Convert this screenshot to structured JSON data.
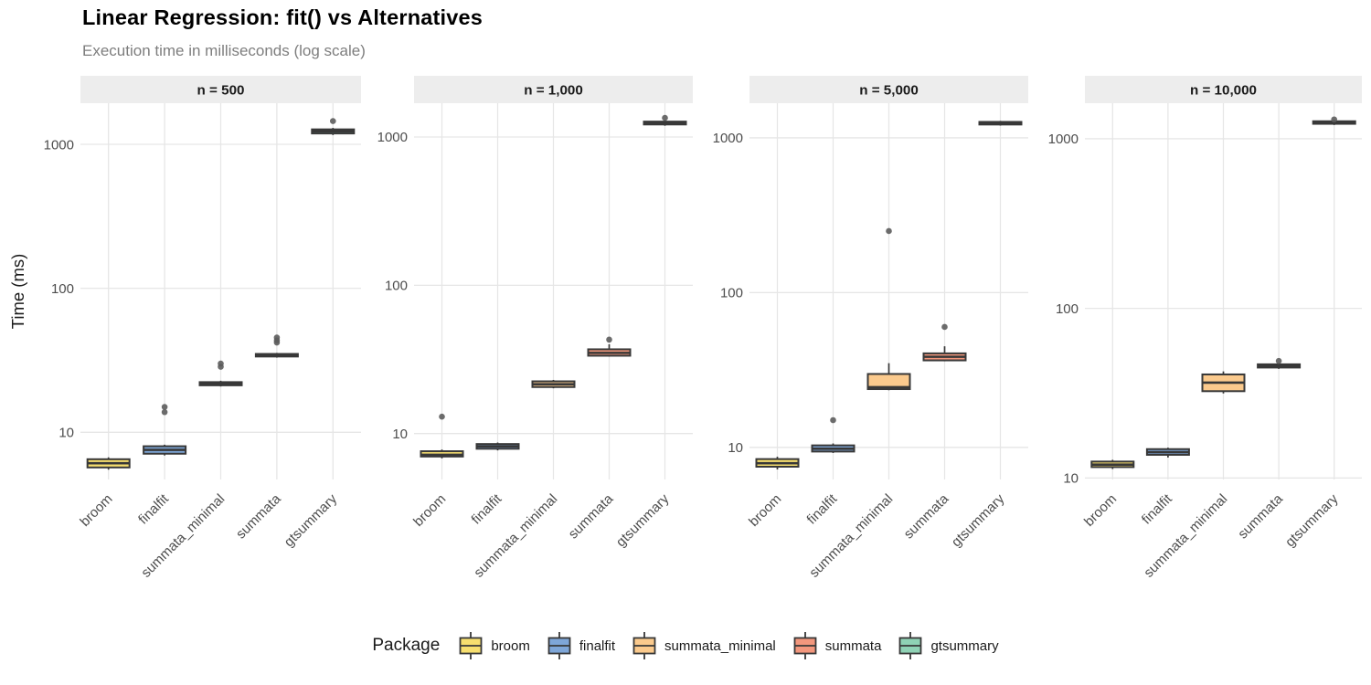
{
  "chart_data": {
    "type": "boxplot",
    "title": "Linear Regression: fit() vs Alternatives",
    "subtitle": "Execution time in milliseconds (log scale)",
    "ylabel": "Time (ms)",
    "legend_title": "Package",
    "legend_position": "bottom",
    "scale": "log10",
    "grid": true,
    "y_ticks": [
      10,
      100,
      1000
    ],
    "categories": [
      "broom",
      "finalfit",
      "summata_minimal",
      "summata",
      "gtsummary"
    ],
    "colors": {
      "broom": "#F7DF6F",
      "finalfit": "#7EA6D8",
      "summata_minimal": "#FBCA8D",
      "summata": "#F3977D",
      "gtsummary": "#8FD2B5"
    },
    "style": {
      "box_stroke": "#383838",
      "outlier_color": "#5c5c5c",
      "grid_color": "#e6e6e6",
      "strip_bg": "#ededed",
      "strip_text": "#1a1a1a",
      "axis_text": "#4d4d4d"
    },
    "facets": [
      {
        "label": "n = 500",
        "ylim": [
          4.7,
          1930
        ],
        "boxes": [
          {
            "package": "broom",
            "whisker_low": 5.5,
            "q1": 5.7,
            "median": 6.1,
            "q3": 6.5,
            "whisker_high": 6.7,
            "outliers": []
          },
          {
            "package": "finalfit",
            "whisker_low": 6.9,
            "q1": 7.1,
            "median": 7.55,
            "q3": 8.0,
            "whisker_high": 8.2,
            "outliers": [
              13.8,
              15
            ]
          },
          {
            "package": "summata_minimal",
            "whisker_low": 20.8,
            "q1": 21.2,
            "median": 21.7,
            "q3": 22.3,
            "whisker_high": 22.8,
            "outliers": [
              28.5,
              30
            ]
          },
          {
            "package": "summata",
            "whisker_low": 33,
            "q1": 33.6,
            "median": 34.2,
            "q3": 35,
            "whisker_high": 35.6,
            "outliers": [
              42,
              43.5,
              45.5
            ]
          },
          {
            "package": "gtsummary",
            "whisker_low": 1160,
            "q1": 1190,
            "median": 1230,
            "q3": 1270,
            "whisker_high": 1300,
            "outliers": [
              1450
            ]
          }
        ]
      },
      {
        "label": "n = 1,000",
        "ylim": [
          4.9,
          1690
        ],
        "boxes": [
          {
            "package": "broom",
            "whisker_low": 6.8,
            "q1": 7.0,
            "median": 7.2,
            "q3": 7.6,
            "whisker_high": 7.8,
            "outliers": [
              13
            ]
          },
          {
            "package": "finalfit",
            "whisker_low": 7.7,
            "q1": 7.9,
            "median": 8.2,
            "q3": 8.5,
            "whisker_high": 8.7,
            "outliers": []
          },
          {
            "package": "summata_minimal",
            "whisker_low": 20.2,
            "q1": 20.6,
            "median": 21.5,
            "q3": 22.5,
            "whisker_high": 23.0,
            "outliers": []
          },
          {
            "package": "summata",
            "whisker_low": 33,
            "q1": 33.5,
            "median": 35,
            "q3": 37,
            "whisker_high": 40,
            "outliers": [
              43
            ]
          },
          {
            "package": "gtsummary",
            "whisker_low": 1190,
            "q1": 1215,
            "median": 1240,
            "q3": 1270,
            "whisker_high": 1295,
            "outliers": [
              1345
            ]
          }
        ]
      },
      {
        "label": "n = 5,000",
        "ylim": [
          6.2,
          1675
        ],
        "boxes": [
          {
            "package": "broom",
            "whisker_low": 7.2,
            "q1": 7.5,
            "median": 7.9,
            "q3": 8.4,
            "whisker_high": 8.7,
            "outliers": []
          },
          {
            "package": "finalfit",
            "whisker_low": 9.2,
            "q1": 9.4,
            "median": 9.8,
            "q3": 10.3,
            "whisker_high": 10.6,
            "outliers": [
              15
            ]
          },
          {
            "package": "summata_minimal",
            "whisker_low": 23.4,
            "q1": 23.8,
            "median": 24.5,
            "q3": 29.8,
            "whisker_high": 35,
            "outliers": [
              250
            ]
          },
          {
            "package": "summata",
            "whisker_low": 36,
            "q1": 36.5,
            "median": 38.5,
            "q3": 40.5,
            "whisker_high": 45,
            "outliers": [
              60
            ]
          },
          {
            "package": "gtsummary",
            "whisker_low": 1200,
            "q1": 1220,
            "median": 1245,
            "q3": 1268,
            "whisker_high": 1288,
            "outliers": []
          }
        ]
      },
      {
        "label": "n = 10,000",
        "ylim": [
          9.8,
          1620
        ],
        "boxes": [
          {
            "package": "broom",
            "whisker_low": 11.3,
            "q1": 11.6,
            "median": 12.0,
            "q3": 12.5,
            "whisker_high": 12.8,
            "outliers": []
          },
          {
            "package": "finalfit",
            "whisker_low": 13.2,
            "q1": 13.7,
            "median": 14.2,
            "q3": 14.8,
            "whisker_high": 15.1,
            "outliers": []
          },
          {
            "package": "summata_minimal",
            "whisker_low": 31.5,
            "q1": 32.5,
            "median": 36.5,
            "q3": 40.8,
            "whisker_high": 42.5,
            "outliers": []
          },
          {
            "package": "summata",
            "whisker_low": 44,
            "q1": 44.8,
            "median": 45.8,
            "q3": 46.8,
            "whisker_high": 47.5,
            "outliers": [
              49
            ]
          },
          {
            "package": "gtsummary",
            "whisker_low": 1205,
            "q1": 1225,
            "median": 1248,
            "q3": 1268,
            "whisker_high": 1290,
            "outliers": [
              1300
            ]
          }
        ]
      }
    ]
  }
}
